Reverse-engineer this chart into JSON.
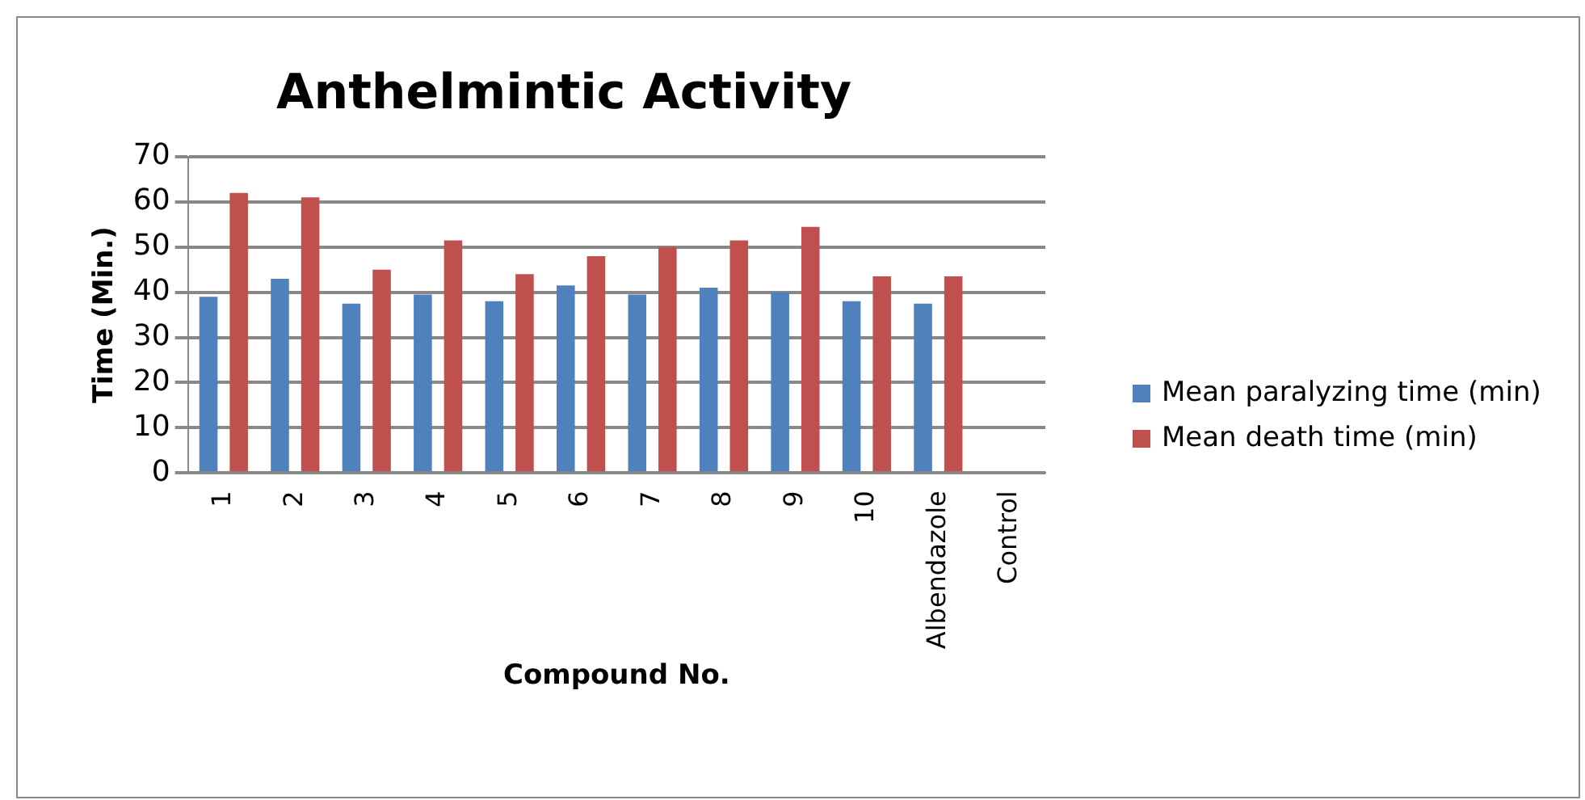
{
  "chart_data": {
    "type": "bar",
    "title": "Anthelmintic Activity",
    "xlabel": "Compound No.",
    "ylabel": "Time (Min.)",
    "categories": [
      "1",
      "2",
      "3",
      "4",
      "5",
      "6",
      "7",
      "8",
      "9",
      "10",
      "Albendazole",
      "Control"
    ],
    "series": [
      {
        "name": "Mean paralyzing time (min)",
        "color": "#4f81bd",
        "values": [
          39,
          43,
          37.5,
          39.5,
          38,
          41.5,
          39.5,
          41,
          40,
          38,
          37.5,
          0
        ]
      },
      {
        "name": "Mean death time (min)",
        "color": "#c0504d",
        "values": [
          62,
          61,
          45,
          51.5,
          44,
          48,
          50,
          51.5,
          54.5,
          43.5,
          43.5,
          0
        ]
      }
    ],
    "ylim": [
      0,
      70
    ],
    "yticks": [
      0,
      10,
      20,
      30,
      40,
      50,
      60,
      70
    ],
    "grid": "y",
    "legend": "right"
  }
}
